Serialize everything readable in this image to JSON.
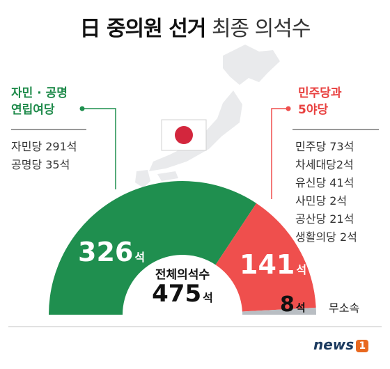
{
  "title": {
    "bold": "日 중의원 선거",
    "light": "최종 의석수"
  },
  "colors": {
    "green": "#1f8f4f",
    "red": "#ef4f4d",
    "gray": "#b9bec3",
    "map": "#e9eaec"
  },
  "left_coalition": {
    "title_line1": "자민 · 공명",
    "title_line2": "연립여당",
    "parties": [
      "자민당 291석",
      "공명당 35석"
    ]
  },
  "right_coalition": {
    "title_line1": "민주당과",
    "title_line2": "5야당",
    "parties": [
      "민주당 73석",
      "차세대당2석",
      "유신당 41석",
      "사민당 2석",
      "공산당 21석",
      "생활의당 2석"
    ]
  },
  "chart_data": {
    "type": "pie",
    "subtype": "semicircle-donut",
    "unit": "석",
    "categories": [
      "자민 · 공명 연립여당",
      "민주당과 5야당",
      "무소속"
    ],
    "values": [
      326,
      141,
      8
    ],
    "total": 475,
    "labels": {
      "green_value": "326",
      "red_value": "141",
      "indep_value": "8",
      "unit": "석",
      "indep_label": "무소속",
      "total_label": "전체의석수",
      "total_value": "475"
    }
  },
  "logo": {
    "text": "news",
    "mark": "1"
  }
}
